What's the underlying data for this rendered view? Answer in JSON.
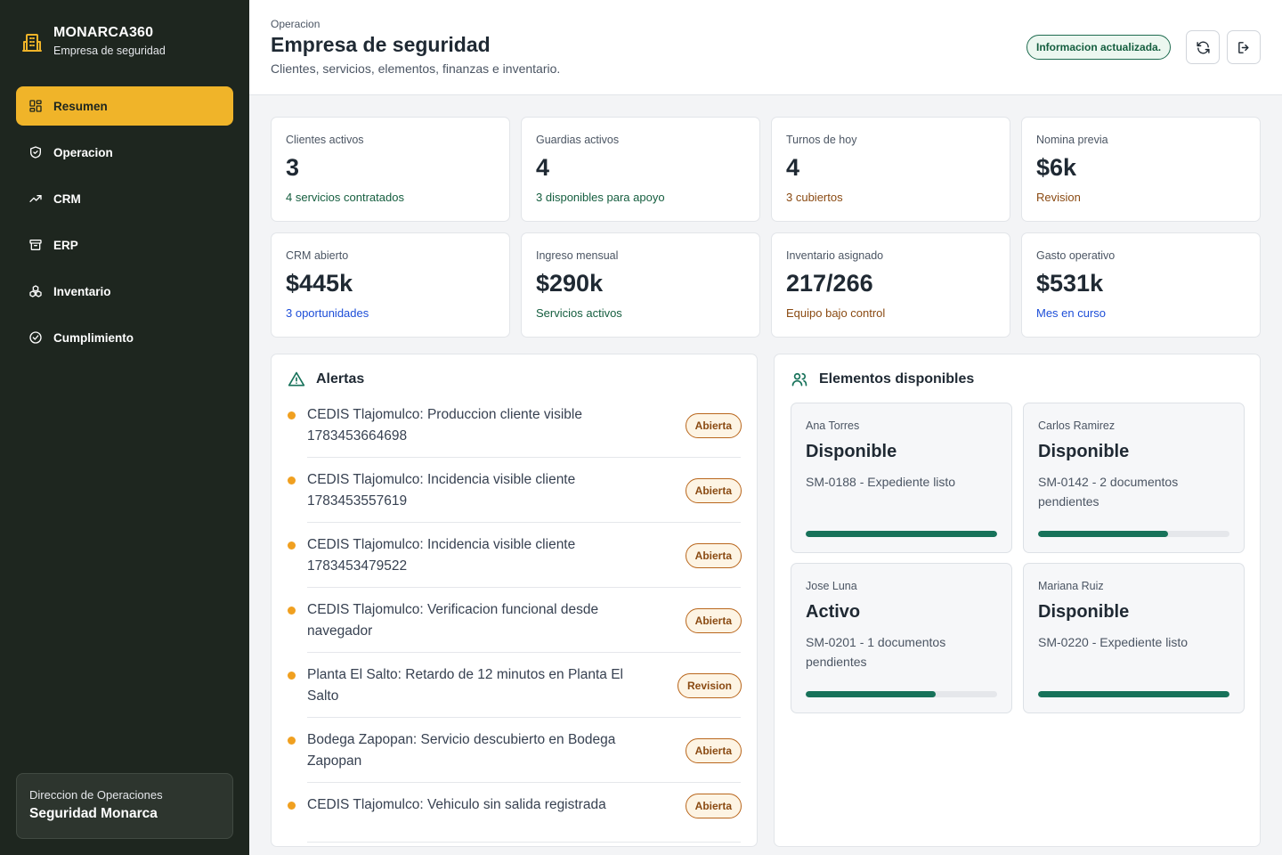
{
  "sidebar": {
    "brand_title": "MONARCA360",
    "brand_subtitle": "Empresa de seguridad",
    "nav": [
      {
        "label": "Resumen",
        "icon": "dashboard-icon",
        "active": true
      },
      {
        "label": "Operacion",
        "icon": "shield-icon",
        "active": false
      },
      {
        "label": "CRM",
        "icon": "trending-up-icon",
        "active": false
      },
      {
        "label": "ERP",
        "icon": "archive-icon",
        "active": false
      },
      {
        "label": "Inventario",
        "icon": "boxes-icon",
        "active": false
      },
      {
        "label": "Cumplimiento",
        "icon": "check-circle-icon",
        "active": false
      }
    ],
    "org_label": "Direccion de Operaciones",
    "org_name": "Seguridad Monarca"
  },
  "header": {
    "eyebrow": "Operacion",
    "title": "Empresa de seguridad",
    "subtitle": "Clientes, servicios, elementos, finanzas e inventario.",
    "status": "Informacion actualizada.",
    "refresh_icon": "refresh-icon",
    "logout_icon": "logout-icon"
  },
  "kpis": [
    {
      "label": "Clientes activos",
      "value": "3",
      "note": "4 servicios contratados",
      "note_color": "#155e3f"
    },
    {
      "label": "Guardias activos",
      "value": "4",
      "note": "3 disponibles para apoyo",
      "note_color": "#155e3f"
    },
    {
      "label": "Turnos de hoy",
      "value": "4",
      "note": "3 cubiertos",
      "note_color": "#8a4a12"
    },
    {
      "label": "Nomina previa",
      "value": "$6k",
      "note": "Revision",
      "note_color": "#8a4a12"
    },
    {
      "label": "CRM abierto",
      "value": "$445k",
      "note": "3 oportunidades",
      "note_color": "#1d4ed8"
    },
    {
      "label": "Ingreso mensual",
      "value": "$290k",
      "note": "Servicios activos",
      "note_color": "#155e3f"
    },
    {
      "label": "Inventario asignado",
      "value": "217/266",
      "note": "Equipo bajo control",
      "note_color": "#8a4a12"
    },
    {
      "label": "Gasto operativo",
      "value": "$531k",
      "note": "Mes en curso",
      "note_color": "#1d4ed8"
    }
  ],
  "alerts": {
    "title": "Alertas",
    "icon": "warning-icon",
    "items": [
      {
        "text": "CEDIS Tlajomulco: Produccion cliente visible 1783453664698",
        "status": "Abierta"
      },
      {
        "text": "CEDIS Tlajomulco: Incidencia visible cliente 1783453557619",
        "status": "Abierta"
      },
      {
        "text": "CEDIS Tlajomulco: Incidencia visible cliente 1783453479522",
        "status": "Abierta"
      },
      {
        "text": "CEDIS Tlajomulco: Verificacion funcional desde navegador",
        "status": "Abierta"
      },
      {
        "text": "Planta El Salto: Retardo de 12 minutos en Planta El Salto",
        "status": "Revision"
      },
      {
        "text": "Bodega Zapopan: Servicio descubierto en Bodega Zapopan",
        "status": "Abierta"
      },
      {
        "text": "CEDIS Tlajomulco: Vehiculo sin salida registrada",
        "status": "Abierta"
      }
    ]
  },
  "elements": {
    "title": "Elementos disponibles",
    "icon": "users-icon",
    "items": [
      {
        "name": "Ana Torres",
        "status": "Disponible",
        "detail": "SM-0188 - Expediente listo",
        "progress": 1.0
      },
      {
        "name": "Carlos Ramirez",
        "status": "Disponible",
        "detail": "SM-0142 - 2 documentos pendientes",
        "progress": 0.68
      },
      {
        "name": "Jose Luna",
        "status": "Activo",
        "detail": "SM-0201 - 1 documentos pendientes",
        "progress": 0.68
      },
      {
        "name": "Mariana Ruiz",
        "status": "Disponible",
        "detail": "SM-0220 - Expediente listo",
        "progress": 1.0
      }
    ]
  }
}
